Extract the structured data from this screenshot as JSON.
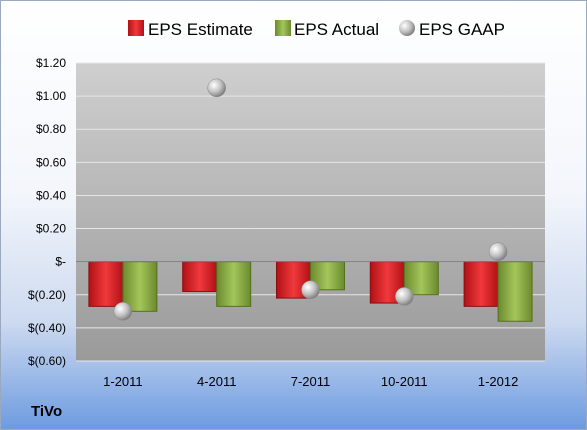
{
  "company": "TiVo",
  "colors": {
    "estimate": "#e2262a",
    "actual": "#8fb34a",
    "gaap": "#b9b9b9"
  },
  "chart_data": {
    "type": "bar",
    "title": "",
    "xlabel": "",
    "ylabel": "",
    "categories": [
      "1-2011",
      "4-2011",
      "7-2011",
      "10-2011",
      "1-2012"
    ],
    "series": [
      {
        "name": "EPS Estimate",
        "kind": "bar",
        "values": [
          -0.27,
          -0.18,
          -0.22,
          -0.25,
          -0.27
        ]
      },
      {
        "name": "EPS Actual",
        "kind": "bar",
        "values": [
          -0.3,
          -0.27,
          -0.17,
          -0.2,
          -0.36
        ]
      },
      {
        "name": "EPS GAAP",
        "kind": "scatter",
        "values": [
          -0.3,
          1.05,
          -0.17,
          -0.21,
          0.06
        ]
      }
    ],
    "ylim": [
      -0.6,
      1.2
    ],
    "yticks": [
      -0.6,
      -0.4,
      -0.2,
      0,
      0.2,
      0.4,
      0.6,
      0.8,
      1.0,
      1.2
    ],
    "ytick_labels": [
      "$(0.60)",
      "$(0.40)",
      "$(0.20)",
      "$-",
      "$0.20",
      "$0.40",
      "$0.60",
      "$0.80",
      "$1.00",
      "$1.20"
    ],
    "grid": true,
    "legend": "top"
  }
}
